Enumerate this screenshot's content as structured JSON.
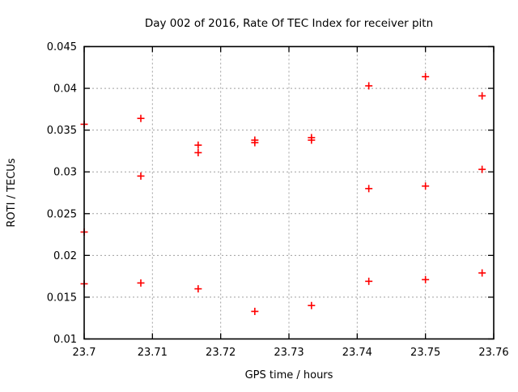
{
  "chart_data": {
    "type": "scatter",
    "title": "Day 002 of 2016, Rate Of TEC Index for receiver pitn",
    "xlabel": "GPS time / hours",
    "ylabel": "ROTI / TECUs",
    "xlim": [
      23.7,
      23.76
    ],
    "ylim": [
      0.01,
      0.045
    ],
    "xticks": [
      {
        "v": 23.7,
        "label": "23.7"
      },
      {
        "v": 23.71,
        "label": "23.71"
      },
      {
        "v": 23.72,
        "label": "23.72"
      },
      {
        "v": 23.73,
        "label": "23.73"
      },
      {
        "v": 23.74,
        "label": "23.74"
      },
      {
        "v": 23.75,
        "label": "23.75"
      },
      {
        "v": 23.76,
        "label": "23.76"
      }
    ],
    "yticks": [
      {
        "v": 0.01,
        "label": "0.01"
      },
      {
        "v": 0.015,
        "label": "0.015"
      },
      {
        "v": 0.02,
        "label": "0.02"
      },
      {
        "v": 0.025,
        "label": "0.025"
      },
      {
        "v": 0.03,
        "label": "0.03"
      },
      {
        "v": 0.035,
        "label": "0.035"
      },
      {
        "v": 0.04,
        "label": "0.04"
      },
      {
        "v": 0.045,
        "label": "0.045"
      }
    ],
    "grid": true,
    "legend": "none",
    "marker": {
      "shape": "plus",
      "color": "#ff0000",
      "size": 9
    },
    "grid_color": "#a0a0a0",
    "axis_color": "#000000",
    "background": "#ffffff",
    "points": [
      [
        23.7,
        0.0357
      ],
      [
        23.7,
        0.0228
      ],
      [
        23.7,
        0.0166
      ],
      [
        23.7083,
        0.0364
      ],
      [
        23.7083,
        0.0295
      ],
      [
        23.7083,
        0.0167
      ],
      [
        23.7167,
        0.0332
      ],
      [
        23.7167,
        0.0323
      ],
      [
        23.7167,
        0.016
      ],
      [
        23.725,
        0.0338
      ],
      [
        23.725,
        0.0335
      ],
      [
        23.725,
        0.0133
      ],
      [
        23.7333,
        0.0341
      ],
      [
        23.7333,
        0.0338
      ],
      [
        23.7333,
        0.014
      ],
      [
        23.7417,
        0.0403
      ],
      [
        23.7417,
        0.028
      ],
      [
        23.7417,
        0.0169
      ],
      [
        23.75,
        0.0414
      ],
      [
        23.75,
        0.0283
      ],
      [
        23.75,
        0.0171
      ],
      [
        23.7583,
        0.0391
      ],
      [
        23.7583,
        0.0303
      ],
      [
        23.7583,
        0.0179
      ]
    ]
  }
}
